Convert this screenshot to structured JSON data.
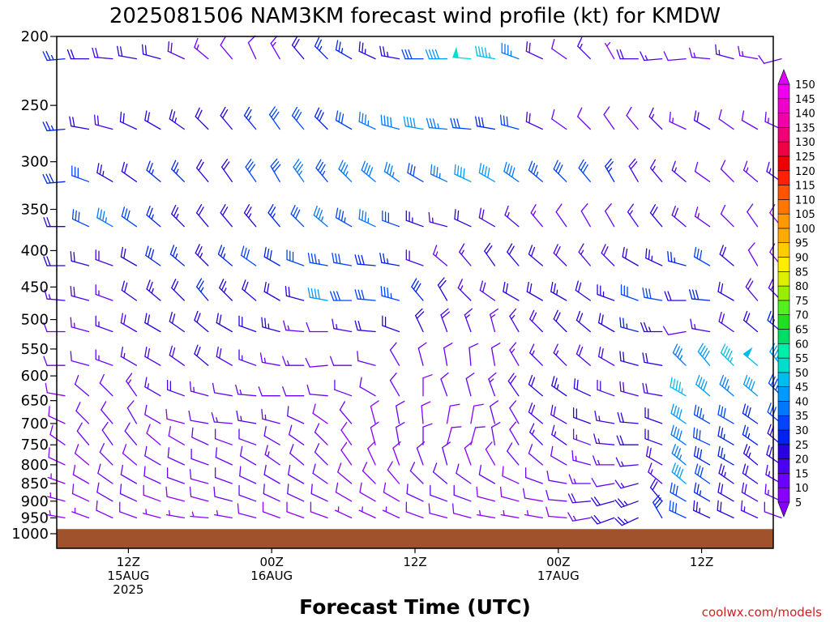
{
  "chart_data": {
    "type": "wind_barb_profile",
    "title": "2025081506 NAM3KM forecast wind profile (kt) for KMDW",
    "xlabel": "Forecast Time (UTC)",
    "credit": "coolwx.com/models",
    "y_axis": {
      "label": "",
      "unit": "hPa",
      "scale": "log",
      "reversed": true,
      "ylim": [
        200,
        1000
      ],
      "ticks": [
        200,
        250,
        300,
        350,
        400,
        450,
        500,
        550,
        600,
        650,
        700,
        750,
        800,
        850,
        900,
        950,
        1000
      ]
    },
    "x_axis": {
      "start_forecast_hour": 0,
      "end_forecast_hour": 60,
      "ticks": [
        {
          "hour": 6,
          "lines": [
            "12Z",
            "15AUG",
            "2025"
          ]
        },
        {
          "hour": 18,
          "lines": [
            "00Z",
            "16AUG"
          ]
        },
        {
          "hour": 30,
          "lines": [
            "12Z"
          ]
        },
        {
          "hour": 42,
          "lines": [
            "00Z",
            "17AUG"
          ]
        },
        {
          "hour": 54,
          "lines": [
            "12Z"
          ]
        }
      ]
    },
    "colorbar": {
      "unit": "kt",
      "levels": [
        5,
        10,
        15,
        20,
        25,
        30,
        35,
        40,
        45,
        50,
        55,
        60,
        65,
        70,
        75,
        80,
        85,
        90,
        95,
        100,
        105,
        110,
        115,
        120,
        125,
        130,
        135,
        140,
        145,
        150
      ],
      "colors": [
        "#8800ff",
        "#6a00ff",
        "#4a00ee",
        "#2a00dd",
        "#0022ee",
        "#0044ff",
        "#0077ff",
        "#0099ff",
        "#00bbee",
        "#00ddcc",
        "#00eeaa",
        "#00dd66",
        "#22dd22",
        "#55ee22",
        "#99ee00",
        "#ddee00",
        "#ffee00",
        "#ffcc00",
        "#ffaa00",
        "#ff9900",
        "#ff7700",
        "#ff5500",
        "#ff2200",
        "#ee0000",
        "#ee0044",
        "#ee0077",
        "#ee00aa",
        "#ee00cc",
        "#ee00ee",
        "#dd00ff"
      ]
    },
    "terrain": {
      "color": "#a0522d",
      "surface_pressure_hpa": 985
    },
    "pressure_levels_hpa": [
      215,
      270,
      320,
      370,
      420,
      470,
      520,
      580,
      640,
      700,
      750,
      800,
      850,
      900,
      950
    ],
    "hours": [
      0,
      2,
      4,
      6,
      8,
      10,
      12,
      14,
      16,
      18,
      20,
      22,
      24,
      26,
      28,
      30,
      32,
      34,
      36,
      38,
      40,
      42,
      44,
      46,
      48,
      50,
      52,
      54,
      56,
      58,
      60
    ],
    "wind_direction_deg": [
      [
        265,
        270,
        275,
        280,
        285,
        295,
        310,
        320,
        335,
        330,
        320,
        315,
        300,
        295,
        280,
        270,
        270,
        275,
        280,
        290,
        295,
        305,
        315,
        330,
        270,
        265,
        265,
        275,
        285,
        280,
        255
      ],
      [
        265,
        280,
        285,
        295,
        300,
        305,
        315,
        320,
        320,
        325,
        320,
        315,
        300,
        295,
        285,
        280,
        275,
        275,
        280,
        285,
        295,
        305,
        315,
        325,
        320,
        315,
        295,
        300,
        305,
        300,
        295
      ],
      [
        265,
        290,
        300,
        305,
        310,
        315,
        320,
        325,
        325,
        330,
        325,
        320,
        315,
        310,
        305,
        300,
        295,
        295,
        300,
        305,
        310,
        315,
        320,
        330,
        330,
        320,
        310,
        305,
        315,
        310,
        305
      ],
      [
        270,
        295,
        300,
        305,
        310,
        315,
        320,
        320,
        320,
        320,
        315,
        310,
        300,
        295,
        290,
        290,
        285,
        295,
        300,
        310,
        320,
        325,
        330,
        330,
        325,
        320,
        310,
        305,
        315,
        325,
        320
      ],
      [
        270,
        285,
        290,
        300,
        305,
        310,
        315,
        310,
        305,
        300,
        290,
        280,
        280,
        275,
        280,
        290,
        310,
        320,
        325,
        320,
        310,
        315,
        320,
        315,
        300,
        295,
        285,
        300,
        310,
        330,
        320
      ],
      [
        275,
        285,
        290,
        305,
        310,
        315,
        320,
        315,
        310,
        300,
        285,
        280,
        270,
        275,
        285,
        320,
        330,
        315,
        305,
        300,
        300,
        300,
        305,
        290,
        290,
        280,
        270,
        275,
        300,
        320,
        315
      ],
      [
        270,
        285,
        290,
        300,
        300,
        305,
        310,
        300,
        290,
        285,
        275,
        270,
        280,
        275,
        290,
        335,
        340,
        340,
        345,
        330,
        315,
        315,
        310,
        300,
        285,
        270,
        260,
        280,
        305,
        310,
        310
      ],
      [
        270,
        285,
        290,
        300,
        300,
        305,
        310,
        300,
        290,
        280,
        270,
        265,
        270,
        285,
        330,
        345,
        350,
        355,
        350,
        330,
        315,
        315,
        310,
        300,
        285,
        280,
        315,
        320,
        315,
        310,
        320
      ],
      [
        280,
        310,
        315,
        325,
        300,
        290,
        285,
        280,
        275,
        270,
        270,
        275,
        290,
        300,
        330,
        0,
        340,
        345,
        340,
        325,
        310,
        305,
        295,
        290,
        285,
        280,
        300,
        310,
        310,
        310,
        315
      ],
      [
        295,
        315,
        320,
        330,
        300,
        285,
        280,
        275,
        280,
        285,
        295,
        305,
        320,
        345,
        350,
        355,
        10,
        10,
        345,
        330,
        310,
        300,
        290,
        280,
        275,
        290,
        305,
        300,
        300,
        305,
        310
      ],
      [
        305,
        320,
        325,
        320,
        310,
        300,
        295,
        290,
        290,
        300,
        305,
        315,
        325,
        345,
        350,
        0,
        15,
        15,
        350,
        330,
        315,
        305,
        290,
        275,
        270,
        290,
        305,
        295,
        300,
        305,
        310
      ],
      [
        295,
        310,
        315,
        310,
        300,
        295,
        290,
        295,
        300,
        305,
        310,
        315,
        325,
        335,
        340,
        340,
        345,
        340,
        330,
        320,
        310,
        300,
        285,
        270,
        265,
        300,
        310,
        300,
        300,
        310,
        305
      ],
      [
        290,
        300,
        305,
        300,
        295,
        290,
        285,
        290,
        295,
        300,
        300,
        305,
        310,
        315,
        320,
        315,
        310,
        305,
        300,
        295,
        290,
        280,
        270,
        260,
        255,
        310,
        310,
        305,
        305,
        305,
        300
      ],
      [
        285,
        295,
        300,
        295,
        290,
        285,
        285,
        285,
        290,
        295,
        295,
        295,
        300,
        300,
        300,
        295,
        290,
        290,
        285,
        285,
        280,
        275,
        265,
        255,
        250,
        320,
        300,
        300,
        300,
        300,
        295
      ],
      [
        280,
        290,
        295,
        290,
        285,
        280,
        275,
        280,
        285,
        290,
        290,
        290,
        295,
        295,
        295,
        290,
        285,
        285,
        280,
        280,
        280,
        275,
        260,
        250,
        245,
        330,
        295,
        295,
        295,
        295,
        290
      ]
    ],
    "wind_speed_kt": [
      [
        25,
        20,
        18,
        20,
        22,
        18,
        14,
        10,
        12,
        14,
        20,
        25,
        26,
        24,
        24,
        30,
        40,
        50,
        45,
        35,
        18,
        10,
        15,
        5,
        18,
        15,
        12,
        14,
        16,
        14,
        12
      ],
      [
        25,
        22,
        18,
        20,
        20,
        24,
        22,
        20,
        25,
        30,
        30,
        28,
        32,
        35,
        38,
        42,
        35,
        30,
        28,
        30,
        18,
        12,
        10,
        12,
        10,
        16,
        14,
        18,
        10,
        12,
        14
      ],
      [
        28,
        30,
        24,
        22,
        26,
        25,
        20,
        22,
        30,
        32,
        35,
        34,
        36,
        38,
        35,
        30,
        35,
        40,
        42,
        38,
        34,
        30,
        32,
        25,
        18,
        16,
        16,
        12,
        10,
        14,
        16
      ],
      [
        22,
        30,
        35,
        32,
        25,
        24,
        20,
        22,
        24,
        26,
        32,
        35,
        34,
        36,
        30,
        24,
        15,
        20,
        18,
        16,
        14,
        12,
        10,
        12,
        15,
        20,
        18,
        14,
        12,
        10,
        8
      ],
      [
        20,
        22,
        18,
        22,
        28,
        26,
        24,
        26,
        30,
        28,
        30,
        34,
        30,
        28,
        26,
        18,
        14,
        16,
        20,
        22,
        20,
        18,
        16,
        18,
        22,
        24,
        26,
        30,
        22,
        12,
        8
      ],
      [
        16,
        18,
        14,
        20,
        24,
        22,
        26,
        24,
        22,
        20,
        22,
        42,
        32,
        30,
        34,
        28,
        20,
        16,
        18,
        22,
        20,
        24,
        22,
        24,
        30,
        30,
        22,
        28,
        22,
        18,
        16
      ],
      [
        12,
        14,
        16,
        18,
        20,
        20,
        22,
        20,
        22,
        24,
        14,
        12,
        16,
        20,
        20,
        20,
        18,
        16,
        14,
        16,
        18,
        20,
        22,
        22,
        26,
        24,
        12,
        16,
        18,
        22,
        26
      ],
      [
        10,
        12,
        14,
        16,
        18,
        18,
        20,
        18,
        16,
        14,
        14,
        10,
        12,
        10,
        10,
        10,
        12,
        12,
        10,
        14,
        16,
        16,
        18,
        18,
        22,
        20,
        36,
        40,
        46,
        48,
        44
      ],
      [
        8,
        10,
        12,
        14,
        16,
        18,
        14,
        12,
        14,
        12,
        10,
        10,
        12,
        10,
        10,
        8,
        10,
        12,
        14,
        18,
        22,
        24,
        20,
        18,
        18,
        18,
        45,
        40,
        36,
        40,
        34
      ],
      [
        8,
        10,
        12,
        12,
        10,
        8,
        12,
        14,
        16,
        14,
        10,
        8,
        10,
        8,
        10,
        8,
        8,
        8,
        10,
        12,
        18,
        18,
        20,
        16,
        20,
        22,
        42,
        34,
        32,
        28,
        30
      ],
      [
        8,
        10,
        12,
        10,
        8,
        8,
        10,
        12,
        12,
        10,
        12,
        12,
        8,
        8,
        10,
        10,
        8,
        8,
        10,
        10,
        16,
        16,
        14,
        16,
        20,
        22,
        38,
        32,
        26,
        26,
        22
      ],
      [
        8,
        8,
        10,
        8,
        10,
        12,
        12,
        12,
        12,
        14,
        10,
        10,
        8,
        8,
        8,
        10,
        10,
        8,
        8,
        10,
        12,
        12,
        14,
        14,
        16,
        18,
        36,
        28,
        26,
        24,
        20
      ],
      [
        6,
        8,
        10,
        12,
        10,
        10,
        8,
        10,
        12,
        10,
        12,
        10,
        8,
        8,
        8,
        10,
        12,
        10,
        10,
        8,
        10,
        12,
        14,
        12,
        16,
        16,
        40,
        30,
        24,
        20,
        16
      ],
      [
        6,
        8,
        10,
        10,
        8,
        8,
        8,
        10,
        10,
        10,
        12,
        10,
        8,
        8,
        8,
        10,
        10,
        10,
        8,
        8,
        8,
        12,
        18,
        20,
        24,
        22,
        32,
        26,
        22,
        18,
        14
      ],
      [
        6,
        6,
        8,
        8,
        6,
        6,
        6,
        6,
        8,
        8,
        8,
        8,
        6,
        6,
        6,
        8,
        8,
        8,
        6,
        6,
        6,
        8,
        14,
        20,
        24,
        28,
        30,
        24,
        20,
        16,
        12
      ]
    ]
  }
}
